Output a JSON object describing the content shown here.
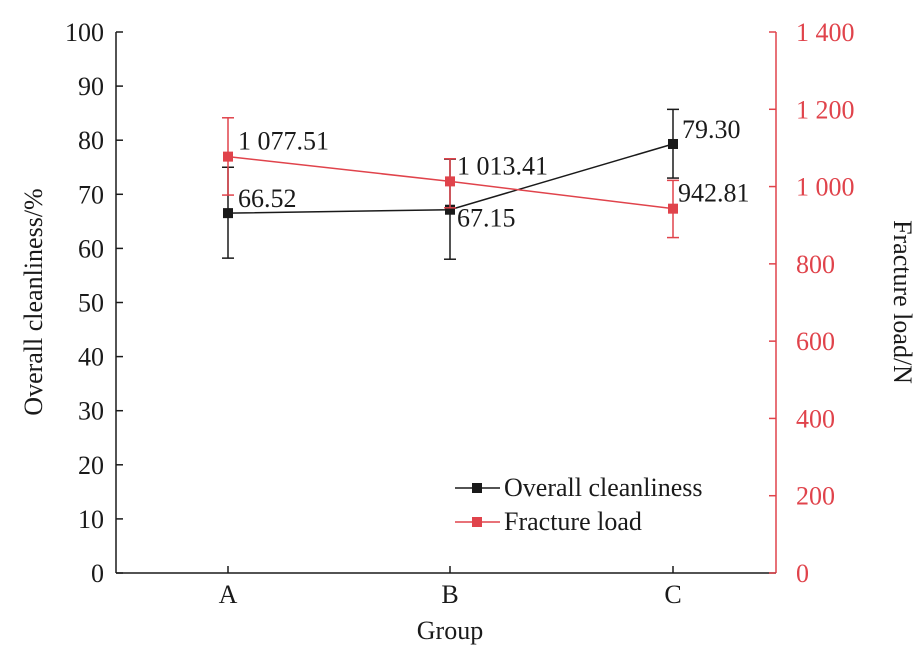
{
  "chart_data": {
    "type": "line",
    "categories": [
      "A",
      "B",
      "C"
    ],
    "xlabel": "Group",
    "ylabel_left": "Overall cleanliness/%",
    "ylabel_right": "Fracture load/N",
    "ylim_left": [
      0,
      100
    ],
    "ylim_right": [
      0,
      1400
    ],
    "yticks_left": [
      "0",
      "10",
      "20",
      "30",
      "40",
      "50",
      "60",
      "70",
      "80",
      "90",
      "100"
    ],
    "yticks_right": [
      "0",
      "200",
      "400",
      "600",
      "800",
      "1 000",
      "1 200",
      "1 400"
    ],
    "series": [
      {
        "name": "Overall cleanliness",
        "axis": "left",
        "color": "#1a1a1a",
        "values": [
          66.52,
          67.15,
          79.3
        ],
        "labels": [
          "66.52",
          "67.15",
          "79.30"
        ],
        "error_low": [
          58.2,
          58.0,
          73.0
        ],
        "error_high": [
          75.0,
          76.5,
          85.7
        ]
      },
      {
        "name": "Fracture load",
        "axis": "right",
        "color": "#e0434b",
        "values": [
          1077.51,
          1013.41,
          942.81
        ],
        "labels": [
          "1 077.51",
          "1 013.41",
          "942.81"
        ],
        "error_low": [
          978,
          945,
          868
        ],
        "error_high": [
          1178,
          1072,
          1016
        ]
      }
    ],
    "legend": [
      "Overall cleanliness",
      "Fracture load"
    ],
    "legend_position": "bottom-right"
  }
}
